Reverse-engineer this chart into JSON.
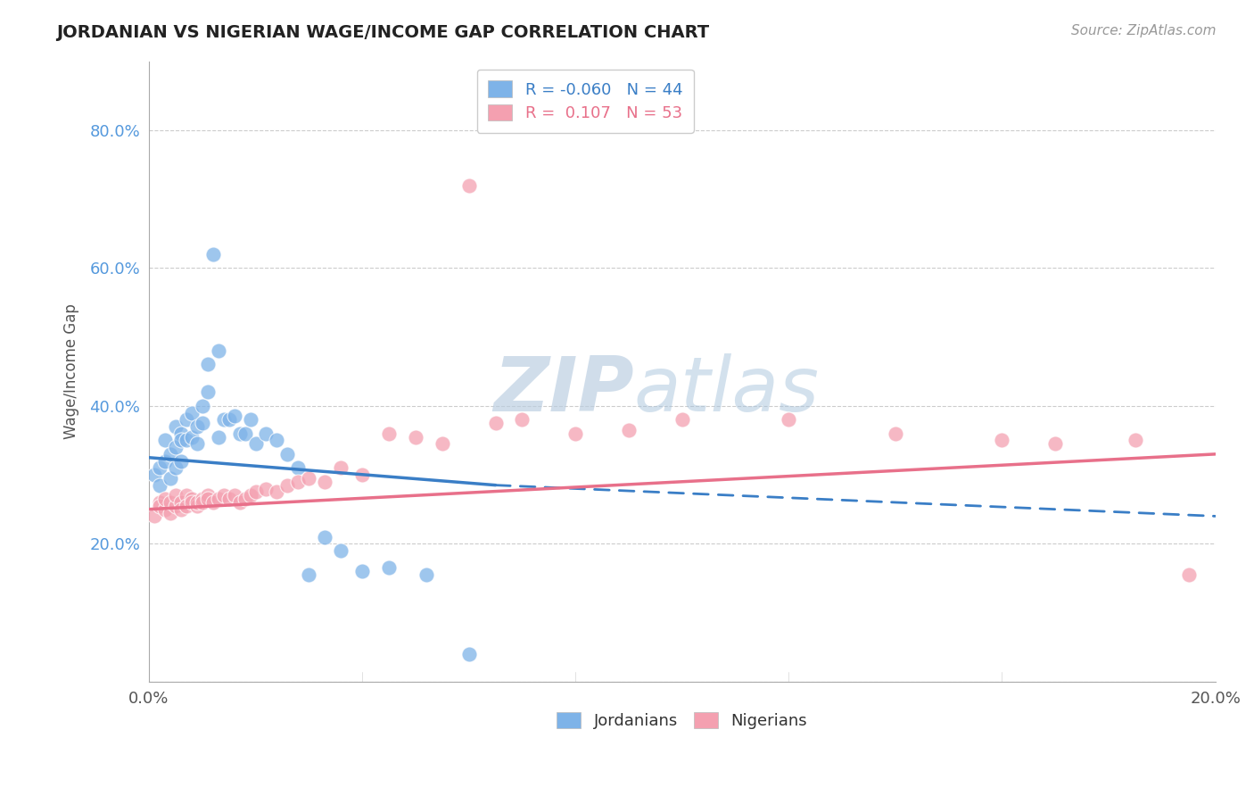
{
  "title": "JORDANIAN VS NIGERIAN WAGE/INCOME GAP CORRELATION CHART",
  "source": "Source: ZipAtlas.com",
  "ylabel": "Wage/Income Gap",
  "xlim": [
    0.0,
    0.2
  ],
  "ylim": [
    0.0,
    0.9
  ],
  "xticks": [
    0.0,
    0.04,
    0.08,
    0.12,
    0.16,
    0.2
  ],
  "xticklabels": [
    "0.0%",
    "",
    "",
    "",
    "",
    "20.0%"
  ],
  "yticks": [
    0.0,
    0.2,
    0.4,
    0.6,
    0.8
  ],
  "yticklabels": [
    "",
    "20.0%",
    "40.0%",
    "60.0%",
    "80.0%"
  ],
  "jordanian_R": -0.06,
  "jordanian_N": 44,
  "nigerian_R": 0.107,
  "nigerian_N": 53,
  "blue_color": "#7EB3E8",
  "pink_color": "#F4A0B0",
  "blue_line_color": "#3A7EC6",
  "pink_line_color": "#E8708A",
  "grid_color": "#CCCCCC",
  "background_color": "#FFFFFF",
  "jordanian_x": [
    0.001,
    0.002,
    0.002,
    0.003,
    0.003,
    0.004,
    0.004,
    0.005,
    0.005,
    0.005,
    0.006,
    0.006,
    0.006,
    0.007,
    0.007,
    0.008,
    0.008,
    0.009,
    0.009,
    0.01,
    0.01,
    0.011,
    0.011,
    0.012,
    0.013,
    0.013,
    0.014,
    0.015,
    0.016,
    0.017,
    0.018,
    0.019,
    0.02,
    0.022,
    0.024,
    0.026,
    0.028,
    0.03,
    0.033,
    0.036,
    0.04,
    0.045,
    0.052,
    0.06
  ],
  "jordanian_y": [
    0.3,
    0.31,
    0.285,
    0.35,
    0.32,
    0.33,
    0.295,
    0.34,
    0.37,
    0.31,
    0.36,
    0.35,
    0.32,
    0.38,
    0.35,
    0.39,
    0.355,
    0.37,
    0.345,
    0.4,
    0.375,
    0.42,
    0.46,
    0.62,
    0.48,
    0.355,
    0.38,
    0.38,
    0.385,
    0.36,
    0.36,
    0.38,
    0.345,
    0.36,
    0.35,
    0.33,
    0.31,
    0.155,
    0.21,
    0.19,
    0.16,
    0.165,
    0.155,
    0.04
  ],
  "nigerian_x": [
    0.001,
    0.002,
    0.002,
    0.003,
    0.003,
    0.004,
    0.004,
    0.005,
    0.005,
    0.006,
    0.006,
    0.007,
    0.007,
    0.008,
    0.008,
    0.009,
    0.009,
    0.01,
    0.01,
    0.011,
    0.011,
    0.012,
    0.013,
    0.014,
    0.015,
    0.016,
    0.017,
    0.018,
    0.019,
    0.02,
    0.022,
    0.024,
    0.026,
    0.028,
    0.03,
    0.033,
    0.036,
    0.04,
    0.045,
    0.05,
    0.055,
    0.06,
    0.065,
    0.07,
    0.08,
    0.09,
    0.1,
    0.12,
    0.14,
    0.16,
    0.17,
    0.185,
    0.195
  ],
  "nigerian_y": [
    0.24,
    0.26,
    0.255,
    0.25,
    0.265,
    0.245,
    0.26,
    0.255,
    0.27,
    0.26,
    0.25,
    0.27,
    0.255,
    0.265,
    0.26,
    0.255,
    0.26,
    0.265,
    0.26,
    0.27,
    0.265,
    0.26,
    0.265,
    0.27,
    0.265,
    0.27,
    0.26,
    0.265,
    0.27,
    0.275,
    0.28,
    0.275,
    0.285,
    0.29,
    0.295,
    0.29,
    0.31,
    0.3,
    0.36,
    0.355,
    0.345,
    0.72,
    0.375,
    0.38,
    0.36,
    0.365,
    0.38,
    0.38,
    0.36,
    0.35,
    0.345,
    0.35,
    0.155
  ],
  "blue_line_x0": 0.0,
  "blue_line_y0": 0.325,
  "blue_line_x1": 0.065,
  "blue_line_y1": 0.285,
  "blue_line_dash_x0": 0.065,
  "blue_line_dash_y0": 0.285,
  "blue_line_dash_x1": 0.2,
  "blue_line_dash_y1": 0.24,
  "pink_line_x0": 0.0,
  "pink_line_y0": 0.25,
  "pink_line_x1": 0.2,
  "pink_line_y1": 0.33
}
